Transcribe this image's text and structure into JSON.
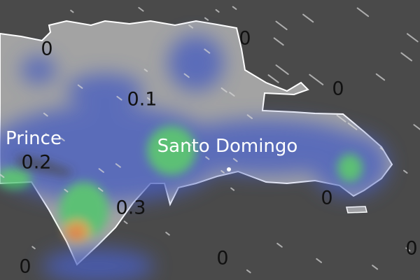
{
  "map": {
    "colors": {
      "sea": "#4a4a4a",
      "land": "#a3a3a3",
      "coastline": "#ffffff",
      "low": "#4a5fbf",
      "mid": "#4cc86a",
      "high": "#e8743a"
    },
    "cities": [
      {
        "name": "Prince"
      },
      {
        "name": "Santo Domingo"
      }
    ],
    "values": [
      "0",
      "0",
      "0",
      "0",
      "0",
      "0",
      "0",
      "0.1",
      "0.2",
      "0.3"
    ]
  }
}
